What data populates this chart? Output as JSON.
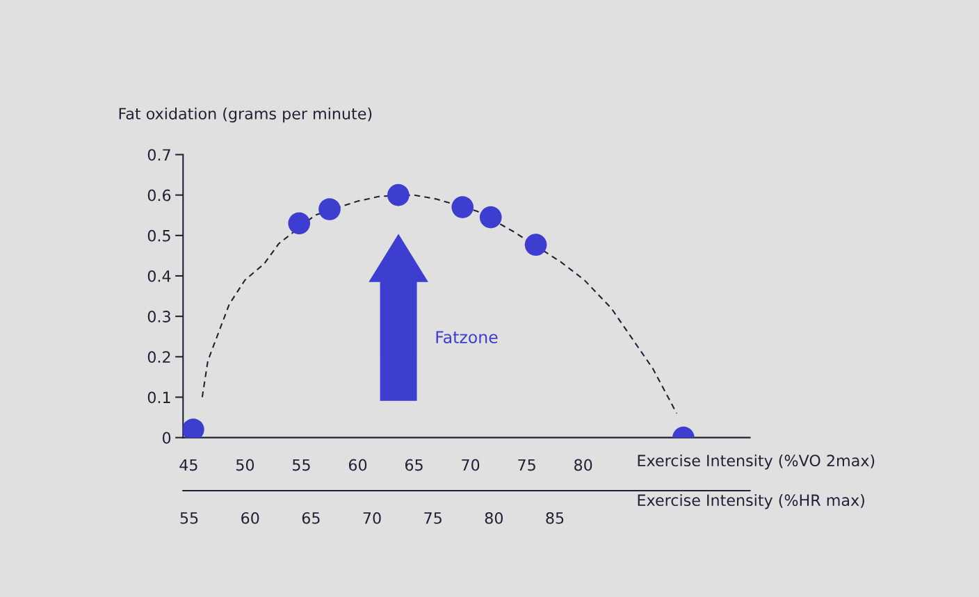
{
  "chart_data": {
    "type": "scatter",
    "ylabel": "Fat oxidation (grams per minute)",
    "xlabel": "Exercise Intensity (%VO 2max)",
    "x2label": "Exercise Intensity (%HR max)",
    "xlim": [
      44.5,
      94.8
    ],
    "xticks": [
      45,
      50,
      55,
      60,
      65,
      70,
      75,
      80
    ],
    "x2lim": [
      54.5,
      101
    ],
    "x2ticks": [
      55,
      60,
      65,
      70,
      75,
      80,
      85
    ],
    "ylim": [
      0,
      0.7
    ],
    "yticks": [
      0,
      0.1,
      0.2,
      0.3,
      0.4,
      0.5,
      0.6,
      0.7
    ],
    "grid": false,
    "legend": false,
    "annotations": [
      "Fatzone"
    ],
    "series": [
      {
        "type": "line",
        "color": "#1f2235",
        "line_style": "dashed",
        "marker": "none",
        "x": [
          46.2,
          46.7,
          48.6,
          50,
          51.7,
          53,
          56.2,
          60,
          62,
          65,
          67,
          70.6,
          73.8,
          78,
          80.1,
          82.5,
          86.2,
          88.3
        ],
        "values": [
          0.1,
          0.19,
          0.33,
          0.39,
          0.43,
          0.48,
          0.55,
          0.585,
          0.597,
          0.6,
          0.59,
          0.56,
          0.51,
          0.435,
          0.39,
          0.32,
          0.17,
          0.06
        ]
      },
      {
        "color": "#3d3ecf",
        "marker": "circle",
        "x": [
          45.4,
          54.8,
          57.5,
          63.6,
          69.3,
          71.8,
          75.8,
          88.9
        ],
        "values": [
          0.02,
          0.53,
          0.565,
          0.6,
          0.57,
          0.545,
          0.477,
          0.0
        ]
      }
    ]
  }
}
